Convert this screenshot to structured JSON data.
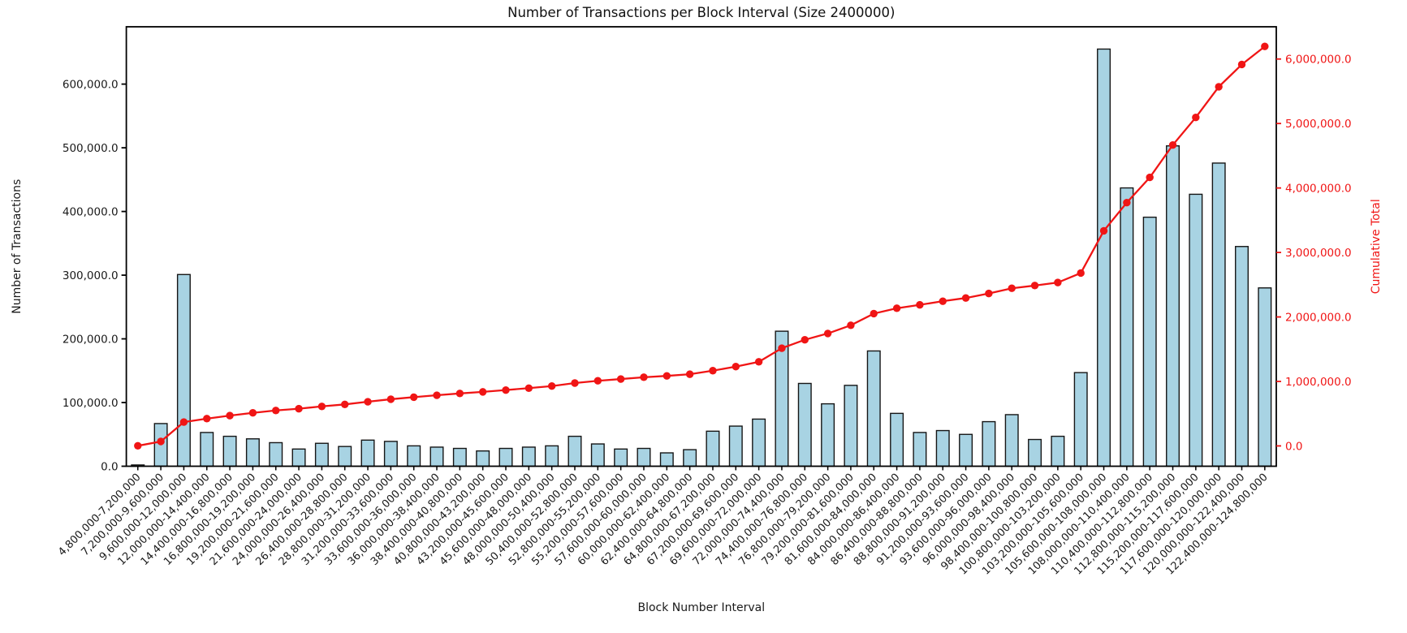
{
  "chart_data": {
    "type": "bar",
    "title": "Number of Transactions per Block Interval (Size 2400000)",
    "xlabel": "Block Number Interval",
    "ylabel": "Number of Transactions",
    "y2label": "Cumulative Total",
    "grid": false,
    "legend_position": "none",
    "categories": [
      "4,800,000-7,200,000",
      "7,200,000-9,600,000",
      "9,600,000-12,000,000",
      "12,000,000-14,400,000",
      "14,400,000-16,800,000",
      "16,800,000-19,200,000",
      "19,200,000-21,600,000",
      "21,600,000-24,000,000",
      "24,000,000-26,400,000",
      "26,400,000-28,800,000",
      "28,800,000-31,200,000",
      "31,200,000-33,600,000",
      "33,600,000-36,000,000",
      "36,000,000-38,400,000",
      "38,400,000-40,800,000",
      "40,800,000-43,200,000",
      "43,200,000-45,600,000",
      "45,600,000-48,000,000",
      "48,000,000-50,400,000",
      "50,400,000-52,800,000",
      "52,800,000-55,200,000",
      "55,200,000-57,600,000",
      "57,600,000-60,000,000",
      "60,000,000-62,400,000",
      "62,400,000-64,800,000",
      "64,800,000-67,200,000",
      "67,200,000-69,600,000",
      "69,600,000-72,000,000",
      "72,000,000-74,400,000",
      "74,400,000-76,800,000",
      "76,800,000-79,200,000",
      "79,200,000-81,600,000",
      "81,600,000-84,000,000",
      "84,000,000-86,400,000",
      "86,400,000-88,800,000",
      "88,800,000-91,200,000",
      "91,200,000-93,600,000",
      "93,600,000-96,000,000",
      "96,000,000-98,400,000",
      "98,400,000-100,800,000",
      "100,800,000-103,200,000",
      "103,200,000-105,600,000",
      "105,600,000-108,000,000",
      "108,000,000-110,400,000",
      "110,400,000-112,800,000",
      "112,800,000-115,200,000",
      "115,200,000-117,600,000",
      "117,600,000-120,000,000",
      "120,000,000-122,400,000",
      "122,400,000-124,800,000"
    ],
    "series": [
      {
        "name": "Number of Transactions",
        "kind": "bar",
        "axis": "left",
        "values": [
          2000,
          67000,
          301000,
          53000,
          47000,
          43000,
          37000,
          27000,
          36000,
          31000,
          41000,
          39000,
          32000,
          30000,
          28000,
          24000,
          28000,
          30000,
          32000,
          47000,
          35000,
          27000,
          28000,
          21000,
          26000,
          55000,
          63000,
          74000,
          212000,
          130000,
          98000,
          127000,
          181000,
          83000,
          53000,
          56000,
          50000,
          70000,
          81000,
          42000,
          47000,
          147000,
          655000,
          437000,
          391000,
          503000,
          427000,
          476000,
          345000,
          280000
        ]
      },
      {
        "name": "Cumulative Total",
        "kind": "line",
        "axis": "right",
        "values": [
          2000,
          69000,
          370000,
          423000,
          470000,
          513000,
          550000,
          577000,
          613000,
          644000,
          685000,
          724000,
          756000,
          786000,
          814000,
          838000,
          866000,
          896000,
          928000,
          975000,
          1010000,
          1037000,
          1065000,
          1086000,
          1112000,
          1167000,
          1230000,
          1304000,
          1516000,
          1646000,
          1744000,
          1871000,
          2052000,
          2135000,
          2188000,
          2244000,
          2294000,
          2364000,
          2445000,
          2487000,
          2534000,
          2681000,
          3336000,
          3773000,
          4164000,
          4667000,
          5094000,
          5570000,
          5915000,
          6195000
        ]
      }
    ],
    "yticks_left": [
      0,
      100000,
      200000,
      300000,
      400000,
      500000,
      600000
    ],
    "yticks_right": [
      0,
      1000000,
      2000000,
      3000000,
      4000000,
      5000000,
      6000000
    ],
    "ylim_left": [
      0,
      690000
    ],
    "ylim_right": [
      -315000,
      6500000
    ],
    "tick_label_format": "thousands-comma-one-decimal"
  },
  "colors": {
    "bar_fill": "#a8d3e3",
    "bar_edge": "#161616",
    "line": "#f01515",
    "right_axis_text": "#f01515",
    "axis_text": "#1a1a1a",
    "spine": "#000000",
    "background": "#ffffff"
  }
}
